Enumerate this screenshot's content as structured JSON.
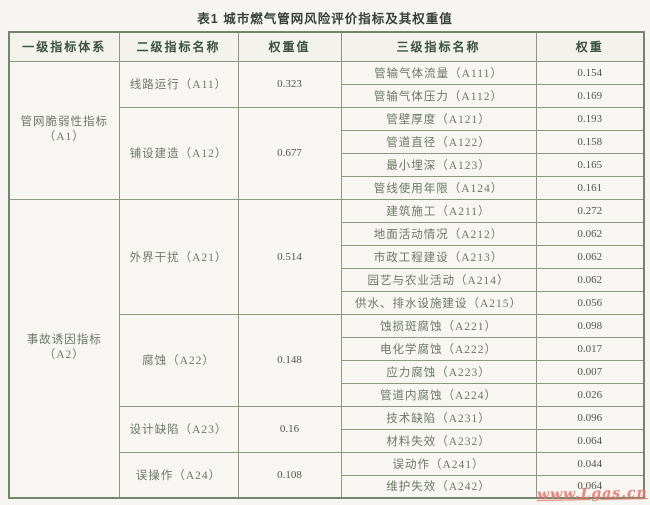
{
  "title": "表1 城市燃气管网风险评价指标及其权重值",
  "watermark": "www.Lgas.cn",
  "table": {
    "headers": [
      "一级指标体系",
      "二级指标名称",
      "权重值",
      "三级指标名称",
      "权重"
    ],
    "level1": [
      {
        "name": "管网脆弱性指标",
        "code": "（A1）",
        "level2": [
          {
            "name": "线路运行（A11）",
            "weight": "0.323",
            "level3": [
              {
                "name": "管输气体流量（A111）",
                "weight": "0.154"
              },
              {
                "name": "管输气体压力（A112）",
                "weight": "0.169"
              }
            ]
          },
          {
            "name": "铺设建造（A12）",
            "weight": "0.677",
            "level3": [
              {
                "name": "管壁厚度（A121）",
                "weight": "0.193"
              },
              {
                "name": "管道直径（A122）",
                "weight": "0.158"
              },
              {
                "name": "最小埋深（A123）",
                "weight": "0.165"
              },
              {
                "name": "管线使用年限（A124）",
                "weight": "0.161"
              }
            ]
          }
        ]
      },
      {
        "name": "事故诱因指标",
        "code": "（A2）",
        "level2": [
          {
            "name": "外界干扰（A21）",
            "weight": "0.514",
            "level3": [
              {
                "name": "建筑施工（A211）",
                "weight": "0.272"
              },
              {
                "name": "地面活动情况（A212）",
                "weight": "0.062"
              },
              {
                "name": "市政工程建设（A213）",
                "weight": "0.062"
              },
              {
                "name": "园艺与农业活动（A214）",
                "weight": "0.062"
              },
              {
                "name": "供水、排水设施建设（A215）",
                "weight": "0.056"
              }
            ]
          },
          {
            "name": "腐蚀（A22）",
            "weight": "0.148",
            "level3": [
              {
                "name": "蚀损斑腐蚀（A221）",
                "weight": "0.098"
              },
              {
                "name": "电化学腐蚀（A222）",
                "weight": "0.017"
              },
              {
                "name": "应力腐蚀（A223）",
                "weight": "0.007"
              },
              {
                "name": "管道内腐蚀（A224）",
                "weight": "0.026"
              }
            ]
          },
          {
            "name": "设计缺陷（A23）",
            "weight": "0.16",
            "level3": [
              {
                "name": "技术缺陷（A231）",
                "weight": "0.096"
              },
              {
                "name": "材料失效（A232）",
                "weight": "0.064"
              }
            ]
          },
          {
            "name": "误操作（A24）",
            "weight": "0.108",
            "level3": [
              {
                "name": "误动作（A241）",
                "weight": "0.044"
              },
              {
                "name": "维护失效（A242）",
                "weight": "0.064"
              }
            ]
          }
        ]
      }
    ]
  }
}
